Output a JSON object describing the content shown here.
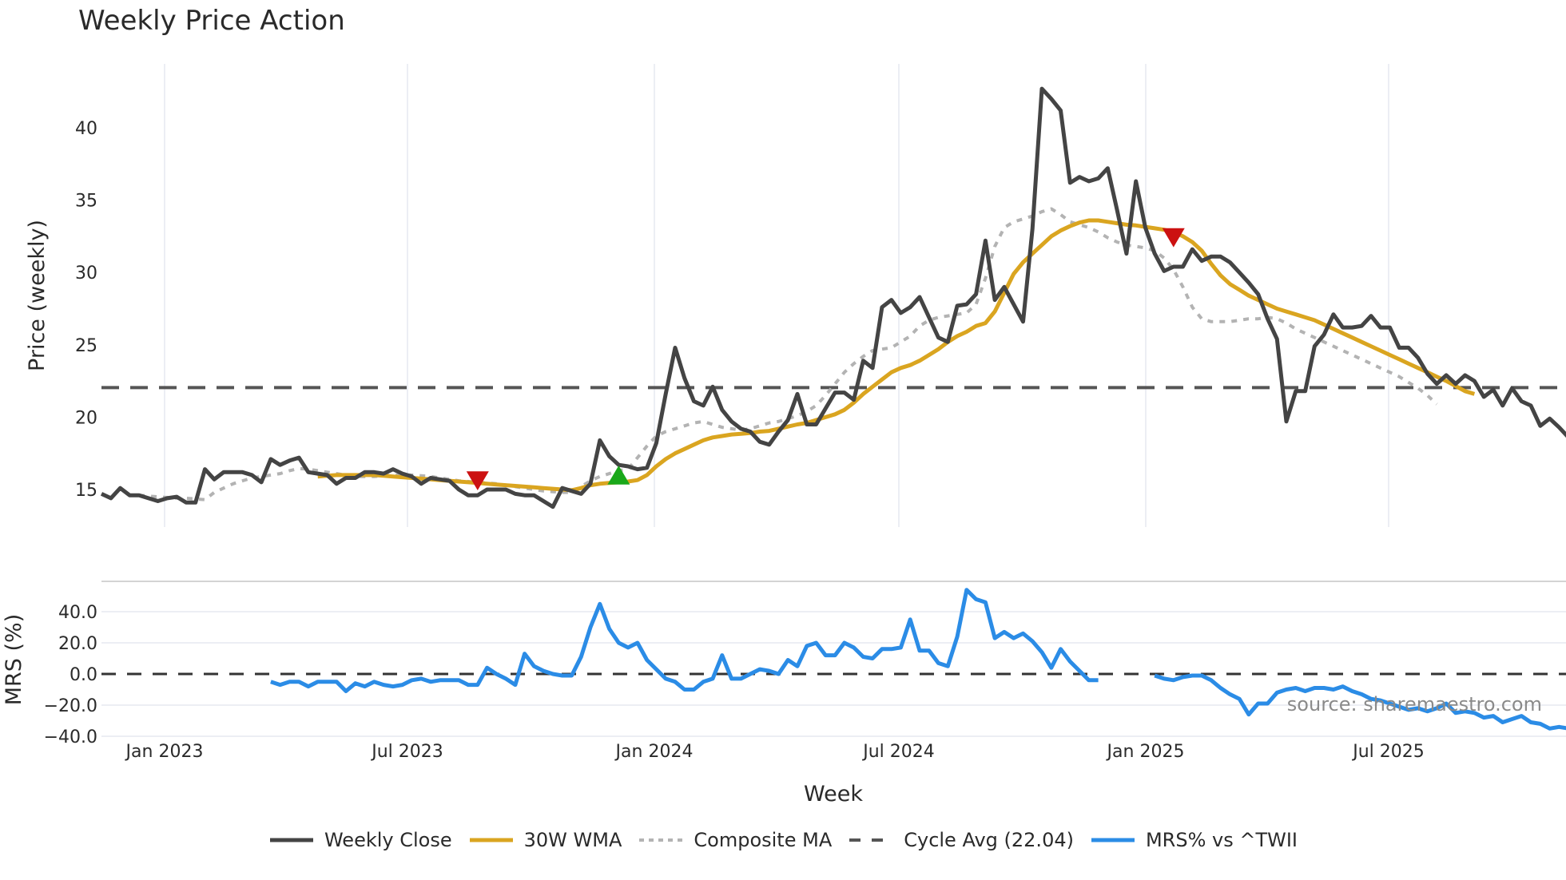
{
  "header": {
    "title": "Weekly Price Action"
  },
  "source_note": "source: sharemaestro.com",
  "colors": {
    "close": "#444444",
    "wma": "#DAA520",
    "composite": "#b3b3b3",
    "cycle": "#555555",
    "mrs": "#2B8CE6",
    "sell_marker": "#CC1111",
    "buy_marker": "#1AA81A",
    "grid": "#eceef4"
  },
  "legend": [
    {
      "key": "close",
      "label": "Weekly Close",
      "style": "solid"
    },
    {
      "key": "wma",
      "label": "30W WMA",
      "style": "solid"
    },
    {
      "key": "composite",
      "label": "Composite MA",
      "style": "dot"
    },
    {
      "key": "cycle",
      "label": "Cycle Avg (22.04)",
      "style": "dash"
    },
    {
      "key": "mrs",
      "label": "MRS% vs ^TWII",
      "style": "solid"
    }
  ],
  "chart_data": [
    {
      "type": "line",
      "title": "Weekly Price Action",
      "xlabel": "Week",
      "ylabel": "Price (weekly)",
      "ylim": [
        12.2,
        44.5
      ],
      "yticks": [
        15,
        20,
        25,
        30,
        35,
        40
      ],
      "xticks": [
        "Jan 2023",
        "Jul 2023",
        "Jan 2024",
        "Jul 2024",
        "Jan 2025",
        "Jul 2025"
      ],
      "grid": true,
      "x_start": "2022-11-14",
      "x_step": "1 week",
      "series": [
        {
          "name": "Weekly Close",
          "start_index": 0,
          "values": [
            14.7,
            14.4,
            15.1,
            14.6,
            14.6,
            14.4,
            14.2,
            14.4,
            14.5,
            14.1,
            14.1,
            16.4,
            15.7,
            16.2,
            16.2,
            16.2,
            16.0,
            15.5,
            17.1,
            16.7,
            17.0,
            17.2,
            16.2,
            16.1,
            16.0,
            15.4,
            15.8,
            15.8,
            16.2,
            16.2,
            16.1,
            16.4,
            16.1,
            15.9,
            15.4,
            15.8,
            15.7,
            15.6,
            15.0,
            14.6,
            14.6,
            15.0,
            15.0,
            15.0,
            14.7,
            14.6,
            14.6,
            14.2,
            13.8,
            15.1,
            14.9,
            14.7,
            15.4,
            18.4,
            17.3,
            16.7,
            16.6,
            16.4,
            16.5,
            18.2,
            21.6,
            24.8,
            22.7,
            21.1,
            20.8,
            22.1,
            20.5,
            19.7,
            19.2,
            19.0,
            18.3,
            18.1,
            19.0,
            19.8,
            21.6,
            19.5,
            19.5,
            20.6,
            21.7,
            21.7,
            21.2,
            23.9,
            23.4,
            27.6,
            28.1,
            27.2,
            27.6,
            28.3,
            26.9,
            25.5,
            25.2,
            27.7,
            27.8,
            28.5,
            32.2,
            28.1,
            29.0,
            27.8,
            26.6,
            33.0,
            42.7,
            42.0,
            41.2,
            36.2,
            36.6,
            36.3,
            36.5,
            37.2,
            34.3,
            31.3,
            36.3,
            33.1,
            31.3,
            30.1,
            30.4,
            30.4,
            31.6,
            30.8,
            31.1,
            31.1,
            30.7,
            30.0,
            29.3,
            28.5,
            26.8,
            25.4,
            19.7,
            21.8,
            21.8,
            24.9,
            25.7,
            27.1,
            26.2,
            26.2,
            26.3,
            27.0,
            26.2,
            26.2,
            24.8,
            24.8,
            24.1,
            23.0,
            22.3,
            22.9,
            22.3,
            22.9,
            22.5,
            21.4,
            21.9,
            20.8,
            22.0,
            21.1,
            20.8,
            19.4,
            19.9,
            19.3,
            18.6,
            18.5
          ]
        },
        {
          "name": "30W WMA",
          "start_index": 23,
          "values": [
            15.9,
            15.95,
            16.0,
            16.0,
            16.0,
            16.0,
            16.0,
            15.95,
            15.9,
            15.85,
            15.8,
            15.75,
            15.7,
            15.65,
            15.6,
            15.55,
            15.5,
            15.45,
            15.4,
            15.35,
            15.3,
            15.25,
            15.2,
            15.15,
            15.1,
            15.05,
            15.0,
            14.95,
            15.1,
            15.3,
            15.4,
            15.45,
            15.5,
            15.55,
            15.65,
            16.0,
            16.6,
            17.1,
            17.5,
            17.8,
            18.1,
            18.4,
            18.6,
            18.7,
            18.8,
            18.85,
            18.9,
            19.0,
            19.05,
            19.2,
            19.35,
            19.5,
            19.6,
            19.8,
            20.0,
            20.2,
            20.5,
            21.0,
            21.6,
            22.1,
            22.6,
            23.1,
            23.4,
            23.6,
            23.9,
            24.3,
            24.7,
            25.2,
            25.6,
            25.9,
            26.3,
            26.5,
            27.3,
            28.6,
            29.9,
            30.7,
            31.3,
            31.9,
            32.5,
            32.9,
            33.2,
            33.45,
            33.6,
            33.6,
            33.5,
            33.4,
            33.3,
            33.25,
            33.15,
            33.05,
            32.95,
            32.8,
            32.5,
            32.1,
            31.5,
            30.6,
            29.8,
            29.2,
            28.8,
            28.4,
            28.1,
            27.8,
            27.5,
            27.3,
            27.1,
            26.9,
            26.7,
            26.4,
            26.1,
            25.8,
            25.5,
            25.2,
            24.9,
            24.6,
            24.3,
            24.0,
            23.7,
            23.4,
            23.1,
            22.8,
            22.5,
            22.15,
            21.8,
            21.6
          ]
        },
        {
          "name": "Composite MA",
          "start_index": 4,
          "values": [
            14.6,
            14.55,
            14.5,
            14.45,
            14.4,
            14.4,
            14.35,
            14.3,
            14.8,
            15.1,
            15.4,
            15.6,
            15.8,
            15.9,
            16.0,
            16.1,
            16.3,
            16.45,
            16.4,
            16.3,
            16.2,
            16.1,
            16.0,
            15.9,
            15.9,
            15.9,
            15.95,
            16.0,
            16.0,
            16.0,
            15.95,
            15.9,
            15.8,
            15.7,
            15.6,
            15.55,
            15.5,
            15.45,
            15.4,
            15.3,
            15.2,
            15.1,
            15.0,
            14.9,
            14.85,
            14.8,
            14.8,
            15.2,
            15.6,
            15.9,
            16.1,
            16.3,
            16.4,
            17.2,
            18.0,
            18.7,
            19.0,
            19.2,
            19.4,
            19.6,
            19.7,
            19.5,
            19.3,
            19.2,
            19.1,
            19.2,
            19.4,
            19.6,
            19.7,
            19.9,
            20.1,
            20.4,
            20.8,
            21.5,
            22.3,
            23.1,
            23.7,
            24.2,
            24.6,
            24.7,
            24.8,
            25.2,
            25.6,
            26.3,
            26.7,
            26.9,
            27.0,
            27.1,
            27.2,
            27.8,
            29.6,
            31.8,
            33.1,
            33.5,
            33.7,
            33.9,
            34.2,
            34.4,
            34.0,
            33.5,
            33.3,
            33.1,
            32.8,
            32.4,
            32.1,
            31.9,
            31.8,
            31.7,
            31.5,
            31.0,
            30.2,
            29.0,
            27.6,
            26.8,
            26.6,
            26.6,
            26.6,
            26.7,
            26.8,
            26.8,
            26.9,
            26.8,
            26.5,
            26.1,
            25.8,
            25.5,
            25.2,
            24.9,
            24.6,
            24.3,
            24.0,
            23.7,
            23.4,
            23.1,
            22.8,
            22.4,
            22.0,
            21.5,
            20.9
          ]
        },
        {
          "name": "Cycle Avg (22.04)",
          "constant": 22.04
        }
      ],
      "markers": [
        {
          "type": "sell",
          "shape": "triangle-down",
          "week_index": 40,
          "value": 15.6
        },
        {
          "type": "buy",
          "shape": "triangle-up",
          "week_index": 55,
          "value": 16.0
        },
        {
          "type": "sell",
          "shape": "triangle-down",
          "week_index": 114,
          "value": 32.4
        }
      ]
    },
    {
      "type": "line",
      "title": "MRS% vs ^TWII",
      "ylabel": "MRS (%)",
      "ylim": [
        -42,
        53
      ],
      "yticks": [
        40.0,
        20.0,
        0.0,
        -20.0,
        -40.0
      ],
      "ytick_labels": [
        "40.0",
        "20.0",
        "0.0",
        "−20.0",
        "−40.0"
      ],
      "reference_line": 0,
      "series": [
        {
          "name": "MRS% vs ^TWII",
          "start_index": 18,
          "values": [
            -5,
            -7,
            -5,
            -5,
            -8,
            -5,
            -5,
            -5,
            -11,
            -6,
            -8,
            -5,
            -7,
            -8,
            -7,
            -4,
            -3,
            -5,
            -4,
            -4,
            -4,
            -7,
            -7,
            4,
            0,
            -3,
            -7,
            13,
            5,
            2,
            0,
            -1,
            -1,
            11,
            30,
            45,
            29,
            20,
            17,
            20,
            9,
            3,
            -3,
            -5,
            -10,
            -10,
            -5,
            -3,
            12,
            -3,
            -3,
            0,
            3,
            2,
            0,
            9,
            5,
            18,
            20,
            12,
            12,
            20,
            17,
            11,
            10,
            16,
            16,
            17,
            35,
            15,
            15,
            7,
            5,
            24,
            54,
            48,
            46,
            23,
            27,
            23,
            26,
            21,
            14,
            4,
            16,
            8,
            2,
            -4,
            -4
          ]
        },
        {
          "name": "MRS% vs ^TWII (cont.)",
          "start_index": 112,
          "values": [
            -1,
            -3,
            -4,
            -2,
            -1,
            -1,
            -4,
            -9,
            -13,
            -16,
            -26,
            -19,
            -19,
            -12,
            -10,
            -9,
            -11,
            -9,
            -9,
            -10,
            -8,
            -11,
            -13,
            -16,
            -17,
            -19,
            -21,
            -23,
            -22,
            -24,
            -22,
            -19,
            -25,
            -24,
            -25,
            -28,
            -27,
            -31,
            -29,
            -27,
            -31,
            -32,
            -35,
            -34,
            -35,
            -35,
            -33
          ]
        }
      ]
    }
  ],
  "axes": {
    "price_yticks": [
      "15",
      "20",
      "25",
      "30",
      "35",
      "40"
    ],
    "price_ylabel": "Price (weekly)",
    "mrs_yticks": [
      "40.0",
      "20.0",
      "0.0",
      "−20.0",
      "−40.0"
    ],
    "mrs_ylabel": "MRS (%)",
    "xticks": [
      "Jan 2023",
      "Jul 2023",
      "Jan 2024",
      "Jul 2024",
      "Jan 2025",
      "Jul 2025"
    ],
    "xlabel": "Week"
  }
}
